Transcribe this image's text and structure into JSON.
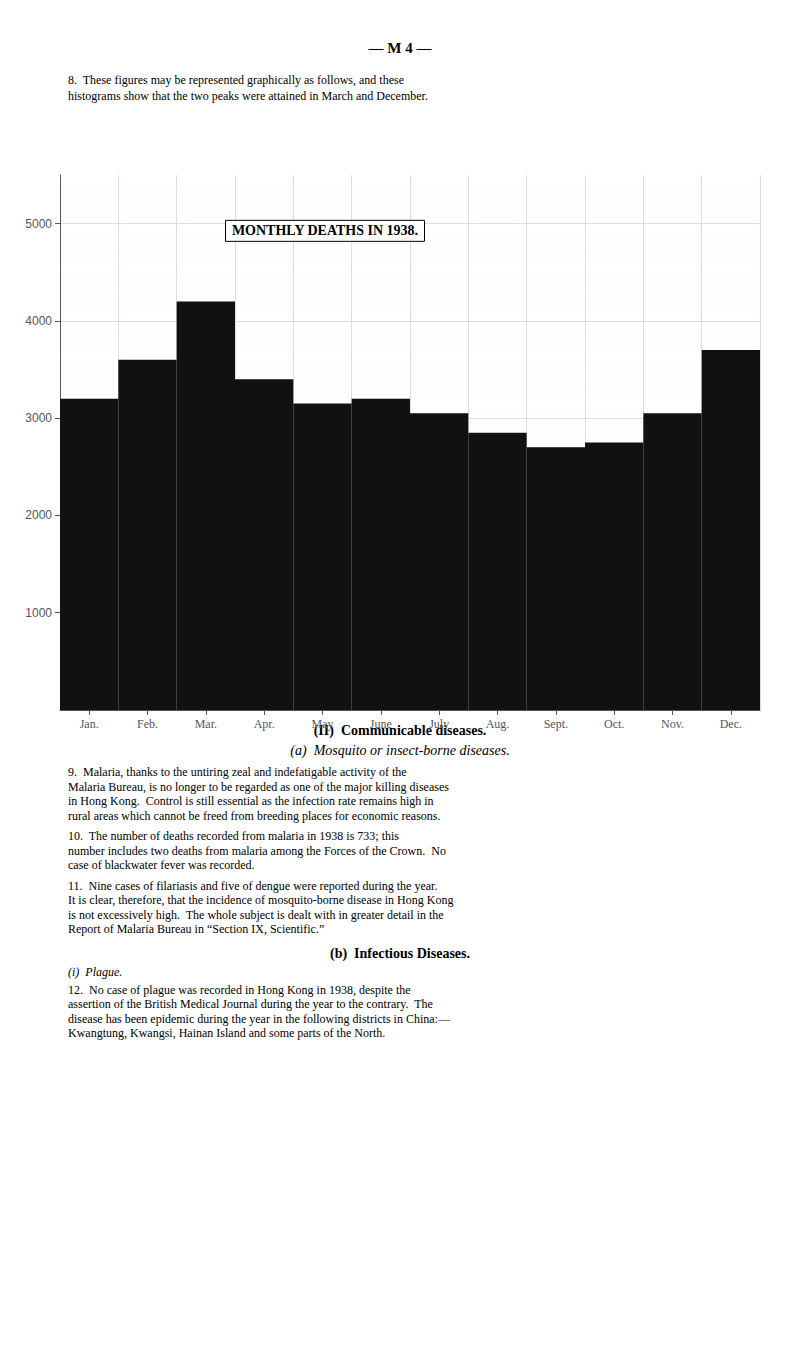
{
  "chart_data": {
    "type": "bar",
    "title": "MONTHLY DEATHS IN 1938.",
    "categories": [
      "Jan.",
      "Feb.",
      "Mar.",
      "Apr.",
      "May",
      "June",
      "July",
      "Aug.",
      "Sept.",
      "Oct.",
      "Nov.",
      "Dec."
    ],
    "values": [
      3200,
      3600,
      4200,
      3400,
      3150,
      3200,
      3050,
      2850,
      2700,
      2750,
      3050,
      3700
    ],
    "color": "#111111",
    "ylim": [
      0,
      5500
    ],
    "yticks": [
      1000,
      2000,
      3000,
      4000,
      5000
    ],
    "grid": true,
    "annotations": [
      "— M 4 —",
      "8.  These figures may be represented graphically as follows, and these",
      "histograms show that the two peaks were attained in March and December.",
      "(II)  Communicable diseases.",
      "(a)  Mosquito or insect-borne diseases.",
      "9.  Malaria, thanks to the untiring zeal and indefatigable activity of the",
      "Malaria Bureau, is no longer to be regarded as one of the major killing diseases",
      "in Hong Kong.  Control is still essential as the infection rate remains high in",
      "rural areas which cannot be freed from breeding places for economic reasons.",
      "10.  The number of deaths recorded from malaria in 1938 is 733; this",
      "number includes two deaths from malaria among the Forces of the Crown.  No",
      "case of blackwater fever was recorded.",
      "11.  Nine cases of filariasis and five of dengue were reported during the year.",
      "It is clear, therefore, that the incidence of mosquito-borne disease in Hong Kong",
      "is not excessively high.  The whole subject is dealt with in greater detail in the",
      "Report of Malaria Bureau in “Section IX, Scientific.”",
      "(b)  Infectious Diseases.",
      "(i)  Plague.",
      "12.  No case of plague was recorded in Hong Kong in 1938, despite the",
      "assertion of the British Medical Journal during the year to the contrary.  The",
      "disease has been epidemic during the year in the following districts in China:—",
      "Kwangtung, Kwangsi, Hainan Island and some parts of the North."
    ]
  }
}
